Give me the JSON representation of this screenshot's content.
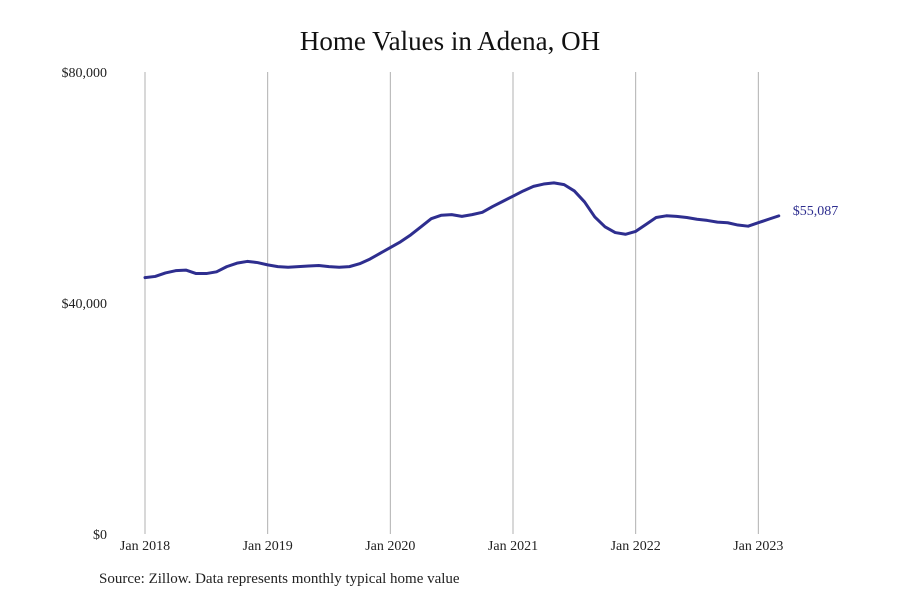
{
  "chart_data": {
    "type": "line",
    "title": "Home Values in Adena, OH",
    "xlabel": "",
    "ylabel": "",
    "ylim": [
      0,
      80000
    ],
    "y_ticks": [
      {
        "value": 0,
        "label": "$0"
      },
      {
        "value": 40000,
        "label": "$40,000"
      },
      {
        "value": 80000,
        "label": "$80,000"
      }
    ],
    "x_ticks": [
      "Jan 2018",
      "Jan 2019",
      "Jan 2020",
      "Jan 2021",
      "Jan 2022",
      "Jan 2023"
    ],
    "grid": "vertical",
    "line_color": "#2e2e8f",
    "gridline_color": "#b0b0b0",
    "series": [
      {
        "start_month": "2018-01",
        "values": [
          44400,
          44600,
          45200,
          45600,
          45700,
          45100,
          45100,
          45400,
          46300,
          46900,
          47200,
          47000,
          46600,
          46300,
          46200,
          46300,
          46400,
          46500,
          46300,
          46200,
          46300,
          46800,
          47600,
          48600,
          49600,
          50600,
          51800,
          53200,
          54600,
          55200,
          55300,
          55000,
          55300,
          55700,
          56700,
          57600,
          58500,
          59400,
          60200,
          60600,
          60800,
          60500,
          59400,
          57500,
          54900,
          53200,
          52200,
          51900,
          52400,
          53600,
          54800,
          55100,
          55000,
          54800,
          54500,
          54300,
          54000,
          53900,
          53500,
          53300,
          53900,
          54500,
          55087
        ]
      }
    ],
    "end_label": "$55,087"
  },
  "source_note": "Source: Zillow. Data represents monthly typical home value"
}
